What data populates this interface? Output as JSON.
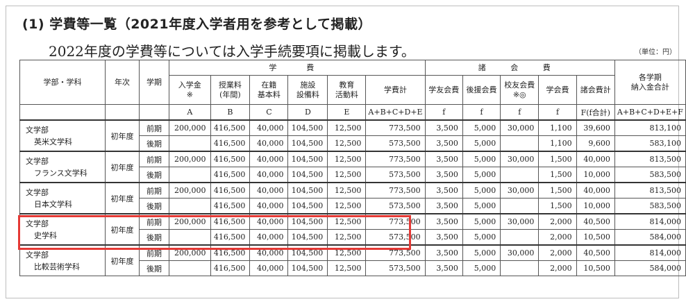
{
  "heading": "(1) 学費等一覧（2021年度入学者用を参考として掲載）",
  "subheading": "2022年度の学費等については入学手続要項に掲載します。",
  "unit": "（単位：円）",
  "header": {
    "dept": "学部・学科",
    "year": "年次",
    "term": "学期",
    "tuition_group": "学　費",
    "assoc_group": "諸 会 費",
    "total_label": "各学期\n納入金合計",
    "cols": [
      "入学金\n※",
      "授業料\n(年間)",
      "在籍\n基本料",
      "施設\n設備料",
      "教育\n活動料",
      "学費計",
      "学友会費",
      "後援会費",
      "校友会費\n※◎",
      "学会費",
      "諸会費計"
    ],
    "codes": [
      "A",
      "B",
      "C",
      "D",
      "E",
      "A+B+C+D+E",
      "f",
      "f",
      "f",
      "f",
      "F(f合計)",
      "A+B+C+D+E+F"
    ]
  },
  "rows": [
    {
      "faculty": "文学部",
      "dept": "英米文学科",
      "year": "初年度",
      "terms": [
        {
          "term": "前期",
          "v": [
            "200,000",
            "416,500",
            "40,000",
            "104,500",
            "12,500",
            "773,500",
            "3,500",
            "5,000",
            "30,000",
            "1,100",
            "39,600",
            "813,100"
          ]
        },
        {
          "term": "後期",
          "v": [
            "",
            "416,500",
            "40,000",
            "104,500",
            "12,500",
            "573,500",
            "3,500",
            "5,000",
            "",
            "1,100",
            "9,600",
            "583,100"
          ]
        }
      ]
    },
    {
      "faculty": "文学部",
      "dept": "フランス文学科",
      "year": "初年度",
      "terms": [
        {
          "term": "前期",
          "v": [
            "200,000",
            "416,500",
            "40,000",
            "104,500",
            "12,500",
            "773,500",
            "3,500",
            "5,000",
            "30,000",
            "1,500",
            "40,000",
            "813,500"
          ]
        },
        {
          "term": "後期",
          "v": [
            "",
            "416,500",
            "40,000",
            "104,500",
            "12,500",
            "573,500",
            "3,500",
            "5,000",
            "",
            "1,500",
            "10,000",
            "583,500"
          ]
        }
      ]
    },
    {
      "faculty": "文学部",
      "dept": "日本文学科",
      "year": "初年度",
      "terms": [
        {
          "term": "前期",
          "v": [
            "200,000",
            "416,500",
            "40,000",
            "104,500",
            "12,500",
            "773,500",
            "3,500",
            "5,000",
            "30,000",
            "1,500",
            "40,000",
            "813,500"
          ]
        },
        {
          "term": "後期",
          "v": [
            "",
            "416,500",
            "40,000",
            "104,500",
            "12,500",
            "573,500",
            "3,500",
            "5,000",
            "",
            "1,500",
            "10,000",
            "583,500"
          ]
        }
      ]
    },
    {
      "faculty": "文学部",
      "dept": "史学科",
      "year": "初年度",
      "terms": [
        {
          "term": "前期",
          "v": [
            "200,000",
            "416,500",
            "40,000",
            "104,500",
            "12,500",
            "773,500",
            "3,500",
            "5,000",
            "30,000",
            "2,000",
            "40,500",
            "814,000"
          ]
        },
        {
          "term": "後期",
          "v": [
            "",
            "416,500",
            "40,000",
            "104,500",
            "12,500",
            "573,500",
            "3,500",
            "5,000",
            "",
            "2,000",
            "10,500",
            "584,000"
          ]
        }
      ]
    },
    {
      "faculty": "文学部",
      "dept": "比較芸術学科",
      "year": "初年度",
      "terms": [
        {
          "term": "前期",
          "v": [
            "200,000",
            "416,500",
            "40,000",
            "104,500",
            "12,500",
            "773,500",
            "3,500",
            "5,000",
            "30,000",
            "2,000",
            "40,500",
            "814,000"
          ]
        },
        {
          "term": "後期",
          "v": [
            "",
            "416,500",
            "40,000",
            "104,500",
            "12,500",
            "573,500",
            "3,500",
            "5,000",
            "",
            "2,000",
            "10,500",
            "584,000"
          ]
        }
      ]
    }
  ],
  "highlight_color": "#e53935"
}
